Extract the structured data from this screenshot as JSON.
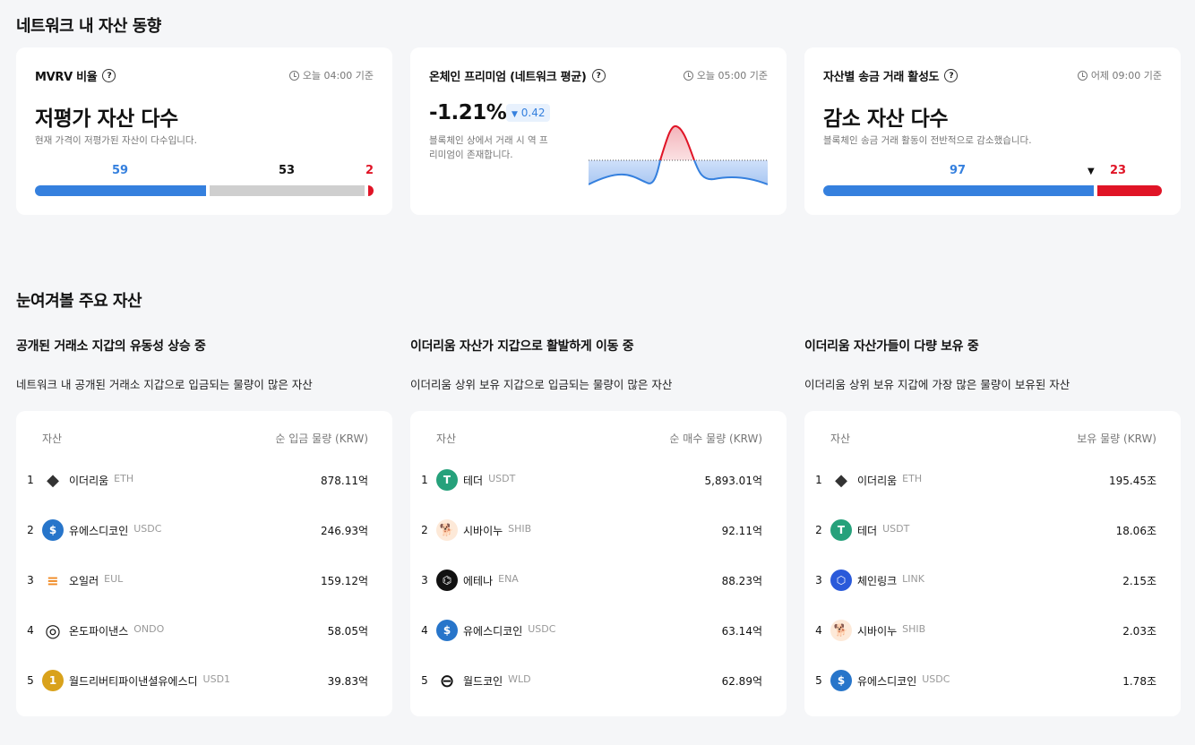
{
  "section1": {
    "title": "네트워크 내 자산 동향"
  },
  "cards": [
    {
      "title": "MVRV 비율",
      "time": "오늘 04:00 기준",
      "headline": "저평가 자산 다수",
      "desc": "현재 가격이 저평가된 자산이 다수입니다.",
      "values": {
        "undervalued": 59,
        "neutral": 53,
        "overvalued": 2
      }
    },
    {
      "title": "온체인 프리미엄 (네트워크 평균)",
      "time": "오늘 05:00 기준",
      "headline": "-1.21%",
      "change": "0.42",
      "change_direction": "down",
      "desc": "블록체인 상에서 거래 시 역 프리미엄이 존재합니다."
    },
    {
      "title": "자산별 송금 거래 활성도",
      "time": "어제 09:00 기준",
      "headline": "감소 자산 다수",
      "desc": "블록체인 송금 거래 활동이 전반적으로 감소했습니다.",
      "values": {
        "decrease": 97,
        "increase": 23
      }
    }
  ],
  "section2": {
    "title": "눈여겨볼 주요 자산"
  },
  "lists": [
    {
      "title": "공개된 거래소 지갑의 유동성 상승 중",
      "desc": "네트워크 내 공개된 거래소 지갑으로 입금되는 물량이 많은 자산",
      "col_asset": "자산",
      "col_value": "순 입금 물량 (KRW)",
      "rows": [
        {
          "rank": "1",
          "name": "이더리움",
          "symbol": "ETH",
          "value": "878.11억",
          "icon": "ethereum-icon"
        },
        {
          "rank": "2",
          "name": "유에스디코인",
          "symbol": "USDC",
          "value": "246.93억",
          "icon": "usdc-icon"
        },
        {
          "rank": "3",
          "name": "오일러",
          "symbol": "EUL",
          "value": "159.12억",
          "icon": "euler-icon"
        },
        {
          "rank": "4",
          "name": "온도파이낸스",
          "symbol": "ONDO",
          "value": "58.05억",
          "icon": "ondo-icon"
        },
        {
          "rank": "5",
          "name": "월드리버티파이낸셜유에스디",
          "symbol": "USD1",
          "value": "39.83억",
          "icon": "usd1-icon"
        }
      ]
    },
    {
      "title": "이더리움 자산가 지갑으로 활발하게 이동 중",
      "desc": "이더리움 상위 보유 지갑으로 입금되는 물량이 많은 자산",
      "col_asset": "자산",
      "col_value": "순 매수 물량 (KRW)",
      "rows": [
        {
          "rank": "1",
          "name": "테더",
          "symbol": "USDT",
          "value": "5,893.01억",
          "icon": "tether-icon"
        },
        {
          "rank": "2",
          "name": "시바이누",
          "symbol": "SHIB",
          "value": "92.11억",
          "icon": "shiba-icon"
        },
        {
          "rank": "3",
          "name": "에테나",
          "symbol": "ENA",
          "value": "88.23억",
          "icon": "ethena-icon"
        },
        {
          "rank": "4",
          "name": "유에스디코인",
          "symbol": "USDC",
          "value": "63.14억",
          "icon": "usdc-icon"
        },
        {
          "rank": "5",
          "name": "월드코인",
          "symbol": "WLD",
          "value": "62.89억",
          "icon": "worldcoin-icon"
        }
      ]
    },
    {
      "title": "이더리움 자산가들이 다량 보유 중",
      "desc": "이더리움 상위 보유 지갑에 가장 많은 물량이 보유된 자산",
      "col_asset": "자산",
      "col_value": "보유 물량 (KRW)",
      "rows": [
        {
          "rank": "1",
          "name": "이더리움",
          "symbol": "ETH",
          "value": "195.45조",
          "icon": "ethereum-icon"
        },
        {
          "rank": "2",
          "name": "테더",
          "symbol": "USDT",
          "value": "18.06조",
          "icon": "tether-icon"
        },
        {
          "rank": "3",
          "name": "체인링크",
          "symbol": "LINK",
          "value": "2.15조",
          "icon": "chainlink-icon"
        },
        {
          "rank": "4",
          "name": "시바이누",
          "symbol": "SHIB",
          "value": "2.03조",
          "icon": "shiba-icon"
        },
        {
          "rank": "5",
          "name": "유에스디코인",
          "symbol": "USDC",
          "value": "1.78조",
          "icon": "usdc-icon"
        }
      ]
    }
  ],
  "colors": {
    "blue": "#3580de",
    "red": "#e01426",
    "gray": "#cfcfcf"
  }
}
